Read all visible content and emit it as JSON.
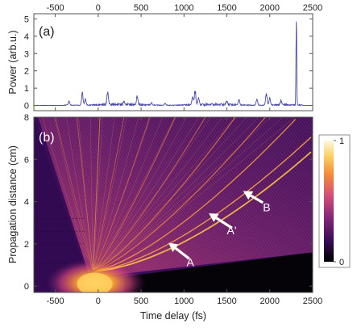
{
  "chart_data": [
    {
      "panel": "a",
      "type": "line",
      "panel_label": "(a)",
      "ylabel": "Power (arb.u.)",
      "xlim": [
        -750,
        2500
      ],
      "ylim": [
        -0.3,
        5.3
      ],
      "xticks": [
        -500,
        0,
        500,
        1000,
        1500,
        2000,
        2500
      ],
      "top_xticks": [
        -500,
        0,
        500,
        1000,
        1500,
        2000,
        2500
      ],
      "yticks": [
        0,
        1,
        2,
        3,
        4,
        5
      ],
      "color": "#4a4aa8",
      "peaks": [
        {
          "t": -340,
          "p": 0.3
        },
        {
          "t": -185,
          "p": 0.85
        },
        {
          "t": -150,
          "p": 0.4
        },
        {
          "t": 110,
          "p": 0.9
        },
        {
          "t": 300,
          "p": 0.2
        },
        {
          "t": 455,
          "p": 0.55
        },
        {
          "t": 620,
          "p": 0.15
        },
        {
          "t": 780,
          "p": 0.12
        },
        {
          "t": 1100,
          "p": 0.55
        },
        {
          "t": 1130,
          "p": 0.95
        },
        {
          "t": 1170,
          "p": 0.45
        },
        {
          "t": 1500,
          "p": 0.25
        },
        {
          "t": 1640,
          "p": 0.35
        },
        {
          "t": 1850,
          "p": 0.4
        },
        {
          "t": 1960,
          "p": 0.8
        },
        {
          "t": 2000,
          "p": 0.5
        },
        {
          "t": 2130,
          "p": 0.3
        },
        {
          "t": 2310,
          "p": 4.95
        }
      ]
    },
    {
      "panel": "b",
      "type": "heatmap",
      "panel_label": "(b)",
      "xlabel": "Time delay (fs)",
      "ylabel": "Propagation distance (cm)",
      "xlim": [
        -750,
        2500
      ],
      "ylim": [
        -0.3,
        8
      ],
      "xticks": [
        -500,
        0,
        500,
        1000,
        1500,
        2000,
        2500
      ],
      "yticks": [
        0,
        2,
        4,
        6,
        8
      ],
      "colorbar": {
        "min": 0,
        "max": 1,
        "ticks": [
          0,
          1
        ]
      },
      "colormap": [
        "#000000",
        "#3a0d5a",
        "#8a2a78",
        "#d4507a",
        "#f38a3a",
        "#fbd060",
        "#fff8e0"
      ],
      "annotations": [
        {
          "label": "A",
          "text_t": 1030,
          "text_z": 0.95,
          "tip_t": 820,
          "tip_z": 2.05,
          "tail_t": 1060,
          "tail_z": 1.3
        },
        {
          "label": "A'",
          "text_t": 1500,
          "text_z": 2.45,
          "tip_t": 1290,
          "tip_z": 3.45,
          "tail_t": 1560,
          "tail_z": 2.75
        },
        {
          "label": "B",
          "text_t": 1920,
          "text_z": 3.55,
          "tip_t": 1690,
          "tip_z": 4.5,
          "tail_t": 1920,
          "tail_z": 3.95
        }
      ]
    }
  ]
}
